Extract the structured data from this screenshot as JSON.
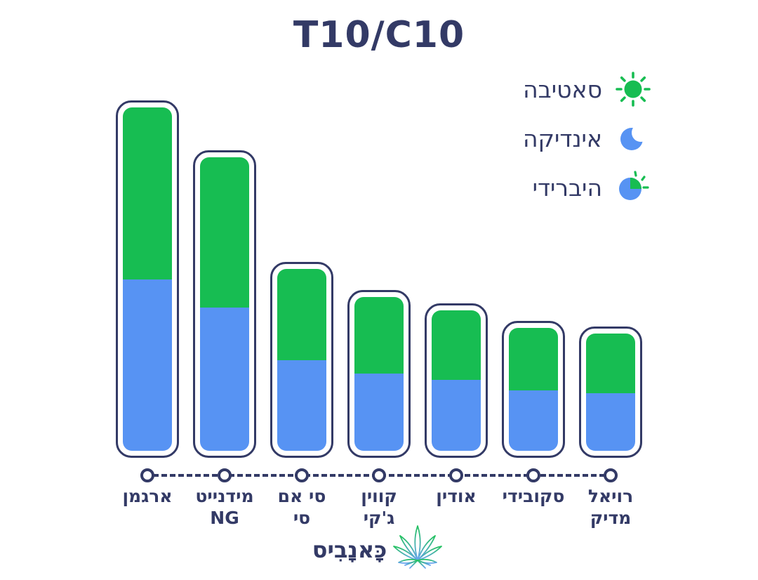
{
  "title": "T10/C10",
  "colors": {
    "sativa_green": "#17bd52",
    "indica_blue": "#5793f3",
    "navy": "#333a66",
    "background": "#ffffff"
  },
  "legend": {
    "position": "top-right",
    "items": [
      {
        "label": "סאטיבה",
        "icon": "sun-icon",
        "color": "#17bd52"
      },
      {
        "label": "אינדיקה",
        "icon": "moon-icon",
        "color": "#5793f3"
      },
      {
        "label": "היברידי",
        "icon": "sun-moon-hybrid-icon",
        "color": "#5793f3"
      }
    ]
  },
  "brand": {
    "name": "כָּאנָבִיס",
    "logo": "cannabis-leaf-icon"
  },
  "chart_data": {
    "type": "bar",
    "stacked": true,
    "orientation": "vertical",
    "title": "T10/C10",
    "categories": [
      "ארגמן",
      "מידנייט NG",
      "סי אם סי",
      "קווין ג'קי",
      "אודין",
      "סקובידי",
      "רויאל מדיק"
    ],
    "category_label_lines": [
      [
        "ארגמן"
      ],
      [
        "מידנייט",
        "NG"
      ],
      [
        "סי אם",
        "סי"
      ],
      [
        "קווין",
        "ג'קי"
      ],
      [
        "אודין"
      ],
      [
        "סקובידי"
      ],
      [
        "רויאל",
        "מדיק"
      ]
    ],
    "value_unit": "relative bar height in px (no numeric axis shown in image)",
    "series": [
      {
        "name": "סאטיבה",
        "role": "sativa",
        "color": "#17bd52",
        "values": [
          245,
          214,
          130,
          109,
          99,
          89,
          85
        ]
      },
      {
        "name": "אינדיקה",
        "role": "indica",
        "color": "#5793f3",
        "values": [
          244,
          204,
          129,
          110,
          101,
          86,
          82
        ]
      }
    ],
    "legend_position": "top-right",
    "axis": {
      "y_axis": "none",
      "x_style": "dashed navy line with white circle markers under each bar"
    }
  }
}
